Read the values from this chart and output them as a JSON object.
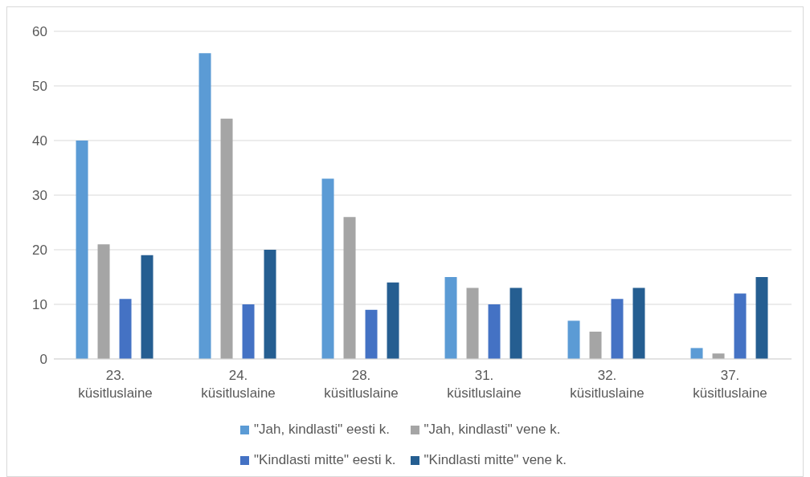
{
  "chart_data": {
    "type": "bar",
    "categories": [
      "23. küsitluslaine",
      "24. küsitluslaine",
      "28. küsitluslaine",
      "31. küsitluslaine",
      "32. küsitluslaine",
      "37. küsitluslaine"
    ],
    "series": [
      {
        "name": "\"Jah, kindlasti\" eesti k.",
        "color": "#5b9bd5",
        "values": [
          40,
          56,
          33,
          15,
          7,
          2
        ]
      },
      {
        "name": "\"Jah, kindlasti\" vene k.",
        "color": "#a5a5a5",
        "values": [
          21,
          44,
          26,
          13,
          5,
          1
        ]
      },
      {
        "name": "\"Kindlasti mitte\" eesti k.",
        "color": "#4472c4",
        "values": [
          11,
          10,
          9,
          10,
          11,
          12
        ]
      },
      {
        "name": "\"Kindlasti mitte\" vene k.",
        "color": "#255e91",
        "values": [
          19,
          20,
          14,
          13,
          13,
          15
        ]
      }
    ],
    "ylim": [
      0,
      60
    ],
    "yticks": [
      0,
      10,
      20,
      30,
      40,
      50,
      60
    ],
    "grid": "y",
    "legend": "bottom"
  }
}
